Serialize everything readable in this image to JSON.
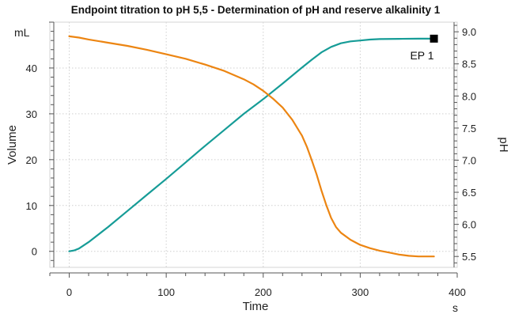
{
  "chart_data": {
    "type": "line",
    "title": "Endpoint titration to pH 5,5 - Determination of pH and reserve alkalinity  1",
    "xlabel": "Time",
    "x_unit": "s",
    "xlim": [
      -20,
      400
    ],
    "x_ticks": [
      0,
      100,
      200,
      300,
      400
    ],
    "y_left": {
      "label": "Volume",
      "unit": "mL",
      "lim": [
        -3.5,
        50
      ],
      "ticks": [
        0,
        10,
        20,
        30,
        40
      ],
      "color": "#169c97"
    },
    "y_right": {
      "label": "pH",
      "lim": [
        5.33,
        9.15
      ],
      "ticks": [
        5.5,
        6.0,
        6.5,
        7.0,
        7.5,
        8.0,
        8.5,
        9.0
      ],
      "tick_labels": [
        "5.5",
        "6.0",
        "6.5",
        "7.0",
        "7.5",
        "8.0",
        "8.5",
        "9.0"
      ],
      "color": "#ec8512"
    },
    "grid": true,
    "series": [
      {
        "name": "Volume",
        "axis": "left",
        "color": "#169c97",
        "x": [
          0,
          5,
          10,
          20,
          40,
          60,
          80,
          100,
          120,
          140,
          160,
          180,
          200,
          220,
          240,
          250,
          260,
          270,
          280,
          290,
          300,
          310,
          320,
          340,
          360,
          376
        ],
        "y": [
          0,
          0.2,
          0.6,
          2,
          5.3,
          8.8,
          12.3,
          15.8,
          19.4,
          23.0,
          26.5,
          30.0,
          33.2,
          36.6,
          40.1,
          41.8,
          43.4,
          44.6,
          45.4,
          45.8,
          46.0,
          46.2,
          46.3,
          46.35,
          46.4,
          46.4
        ]
      },
      {
        "name": "pH",
        "axis": "right",
        "color": "#ec8512",
        "x": [
          0,
          10,
          20,
          40,
          60,
          80,
          100,
          120,
          140,
          160,
          180,
          190,
          200,
          210,
          220,
          230,
          240,
          245,
          250,
          255,
          260,
          265,
          270,
          275,
          280,
          290,
          300,
          310,
          320,
          330,
          340,
          350,
          360,
          376
        ],
        "y": [
          8.93,
          8.91,
          8.88,
          8.83,
          8.78,
          8.72,
          8.65,
          8.58,
          8.49,
          8.39,
          8.26,
          8.18,
          8.08,
          7.96,
          7.82,
          7.63,
          7.38,
          7.21,
          7.0,
          6.78,
          6.53,
          6.3,
          6.1,
          5.96,
          5.87,
          5.76,
          5.68,
          5.63,
          5.59,
          5.56,
          5.53,
          5.51,
          5.5,
          5.5
        ]
      }
    ],
    "markers": [
      {
        "label": "EP 1",
        "x": 376,
        "y": 46.4,
        "axis": "left"
      }
    ]
  }
}
